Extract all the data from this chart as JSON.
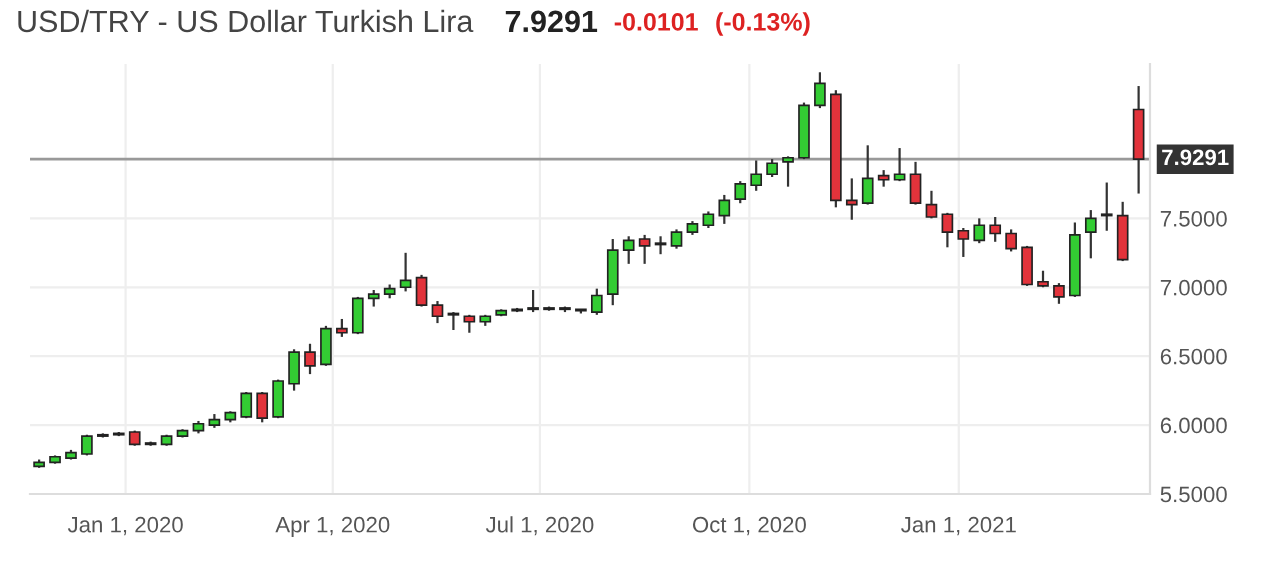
{
  "chart_data": {
    "type": "candlestick",
    "title": "USD/TRY - US Dollar Turkish Lira",
    "annotations": [
      "7.9291",
      "-0.0101",
      "(-0.13%)"
    ],
    "x": [
      "2019-11-24",
      "2019-12-01",
      "2019-12-08",
      "2019-12-15",
      "2019-12-22",
      "2019-12-29",
      "2020-01-05",
      "2020-01-12",
      "2020-01-19",
      "2020-01-26",
      "2020-02-02",
      "2020-02-09",
      "2020-02-16",
      "2020-02-23",
      "2020-03-01",
      "2020-03-08",
      "2020-03-15",
      "2020-03-22",
      "2020-03-29",
      "2020-04-05",
      "2020-04-12",
      "2020-04-19",
      "2020-04-26",
      "2020-05-03",
      "2020-05-10",
      "2020-05-17",
      "2020-05-24",
      "2020-05-31",
      "2020-06-07",
      "2020-06-14",
      "2020-06-21",
      "2020-06-28",
      "2020-07-05",
      "2020-07-12",
      "2020-07-19",
      "2020-07-26",
      "2020-08-02",
      "2020-08-09",
      "2020-08-16",
      "2020-08-23",
      "2020-08-30",
      "2020-09-06",
      "2020-09-13",
      "2020-09-20",
      "2020-09-27",
      "2020-10-04",
      "2020-10-11",
      "2020-10-18",
      "2020-10-25",
      "2020-11-01",
      "2020-11-08",
      "2020-11-15",
      "2020-11-22",
      "2020-11-29",
      "2020-12-06",
      "2020-12-13",
      "2020-12-20",
      "2020-12-27",
      "2021-01-03",
      "2021-01-10",
      "2021-01-17",
      "2021-01-24",
      "2021-01-31",
      "2021-02-07",
      "2021-02-14",
      "2021-02-21",
      "2021-02-28",
      "2021-03-07",
      "2021-03-14",
      "2021-03-21"
    ],
    "ohlc": [
      [
        5.7,
        5.75,
        5.69,
        5.73
      ],
      [
        5.73,
        5.78,
        5.72,
        5.77
      ],
      [
        5.76,
        5.82,
        5.75,
        5.8
      ],
      [
        5.79,
        5.93,
        5.78,
        5.92
      ],
      [
        5.92,
        5.94,
        5.91,
        5.93
      ],
      [
        5.93,
        5.95,
        5.92,
        5.94
      ],
      [
        5.95,
        5.96,
        5.85,
        5.86
      ],
      [
        5.86,
        5.88,
        5.85,
        5.87
      ],
      [
        5.86,
        5.93,
        5.85,
        5.92
      ],
      [
        5.92,
        5.97,
        5.91,
        5.96
      ],
      [
        5.96,
        6.03,
        5.94,
        6.01
      ],
      [
        6.0,
        6.08,
        5.98,
        6.04
      ],
      [
        6.04,
        6.1,
        6.02,
        6.09
      ],
      [
        6.06,
        6.24,
        6.05,
        6.23
      ],
      [
        6.23,
        6.24,
        6.02,
        6.05
      ],
      [
        6.06,
        6.33,
        6.05,
        6.32
      ],
      [
        6.3,
        6.55,
        6.25,
        6.53
      ],
      [
        6.53,
        6.59,
        6.37,
        6.43
      ],
      [
        6.44,
        6.72,
        6.43,
        6.7
      ],
      [
        6.7,
        6.77,
        6.64,
        6.67
      ],
      [
        6.67,
        6.93,
        6.66,
        6.92
      ],
      [
        6.92,
        6.98,
        6.86,
        6.95
      ],
      [
        6.95,
        7.02,
        6.92,
        6.99
      ],
      [
        7.0,
        7.25,
        6.97,
        7.05
      ],
      [
        7.07,
        7.09,
        6.86,
        6.87
      ],
      [
        6.87,
        6.9,
        6.74,
        6.79
      ],
      [
        6.81,
        6.82,
        6.69,
        6.8
      ],
      [
        6.79,
        6.8,
        6.67,
        6.75
      ],
      [
        6.75,
        6.8,
        6.72,
        6.79
      ],
      [
        6.8,
        6.84,
        6.79,
        6.83
      ],
      [
        6.83,
        6.85,
        6.82,
        6.84
      ],
      [
        6.84,
        6.98,
        6.82,
        6.85
      ],
      [
        6.84,
        6.86,
        6.83,
        6.85
      ],
      [
        6.85,
        6.86,
        6.82,
        6.84
      ],
      [
        6.84,
        6.84,
        6.81,
        6.83
      ],
      [
        6.82,
        6.99,
        6.8,
        6.94
      ],
      [
        6.95,
        7.35,
        6.87,
        7.27
      ],
      [
        7.27,
        7.37,
        7.17,
        7.34
      ],
      [
        7.35,
        7.38,
        7.17,
        7.3
      ],
      [
        7.31,
        7.37,
        7.24,
        7.32
      ],
      [
        7.3,
        7.42,
        7.28,
        7.4
      ],
      [
        7.4,
        7.48,
        7.38,
        7.46
      ],
      [
        7.45,
        7.55,
        7.43,
        7.53
      ],
      [
        7.52,
        7.67,
        7.46,
        7.63
      ],
      [
        7.64,
        7.77,
        7.61,
        7.75
      ],
      [
        7.74,
        7.92,
        7.7,
        7.82
      ],
      [
        7.82,
        7.93,
        7.8,
        7.9
      ],
      [
        7.91,
        7.95,
        7.73,
        7.94
      ],
      [
        7.94,
        8.34,
        7.93,
        8.32
      ],
      [
        8.32,
        8.56,
        8.3,
        8.48
      ],
      [
        8.4,
        8.43,
        7.58,
        7.63
      ],
      [
        7.63,
        7.79,
        7.49,
        7.6
      ],
      [
        7.61,
        8.03,
        7.6,
        7.79
      ],
      [
        7.81,
        7.85,
        7.73,
        7.78
      ],
      [
        7.78,
        8.01,
        7.77,
        7.82
      ],
      [
        7.82,
        7.91,
        7.6,
        7.61
      ],
      [
        7.6,
        7.7,
        7.5,
        7.51
      ],
      [
        7.53,
        7.54,
        7.29,
        7.4
      ],
      [
        7.41,
        7.43,
        7.22,
        7.35
      ],
      [
        7.34,
        7.5,
        7.32,
        7.45
      ],
      [
        7.45,
        7.51,
        7.33,
        7.39
      ],
      [
        7.39,
        7.42,
        7.26,
        7.28
      ],
      [
        7.29,
        7.3,
        7.01,
        7.02
      ],
      [
        7.04,
        7.12,
        7.0,
        7.01
      ],
      [
        7.01,
        7.03,
        6.88,
        6.93
      ],
      [
        6.94,
        7.47,
        6.93,
        7.38
      ],
      [
        7.4,
        7.56,
        7.21,
        7.5
      ],
      [
        7.52,
        7.76,
        7.41,
        7.53
      ],
      [
        7.52,
        7.62,
        7.19,
        7.2
      ],
      [
        8.29,
        8.46,
        7.68,
        7.93
      ]
    ],
    "colors": [
      "#33cc33",
      "#33cc33",
      "#33cc33",
      "#33cc33",
      "#33cc33",
      "#33cc33",
      "#e2333b",
      "#33cc33",
      "#33cc33",
      "#33cc33",
      "#33cc33",
      "#33cc33",
      "#33cc33",
      "#33cc33",
      "#e2333b",
      "#33cc33",
      "#33cc33",
      "#e2333b",
      "#33cc33",
      "#e2333b",
      "#33cc33",
      "#33cc33",
      "#33cc33",
      "#33cc33",
      "#e2333b",
      "#e2333b",
      "#e2333b",
      "#e2333b",
      "#33cc33",
      "#33cc33",
      "#33cc33",
      "#33cc33",
      "#33cc33",
      "#e2333b",
      "#e2333b",
      "#33cc33",
      "#33cc33",
      "#33cc33",
      "#e2333b",
      "#33cc33",
      "#33cc33",
      "#33cc33",
      "#33cc33",
      "#33cc33",
      "#33cc33",
      "#33cc33",
      "#33cc33",
      "#33cc33",
      "#33cc33",
      "#33cc33",
      "#e2333b",
      "#e2333b",
      "#33cc33",
      "#e2333b",
      "#33cc33",
      "#e2333b",
      "#e2333b",
      "#e2333b",
      "#e2333b",
      "#33cc33",
      "#e2333b",
      "#e2333b",
      "#e2333b",
      "#e2333b",
      "#e2333b",
      "#33cc33",
      "#33cc33",
      "#33cc33",
      "#e2333b",
      "#e2333b"
    ],
    "xlim": [
      "2019-11-20",
      "2021-03-26"
    ],
    "xticks": [
      {
        "value": "2020-01-01",
        "label": "Jan 1, 2020"
      },
      {
        "value": "2020-04-01",
        "label": "Apr 1, 2020"
      },
      {
        "value": "2020-07-01",
        "label": "Jul 1, 2020"
      },
      {
        "value": "2020-10-01",
        "label": "Oct 1, 2020"
      },
      {
        "value": "2021-01-01",
        "label": "Jan 1, 2021"
      }
    ],
    "ylim": [
      5.5,
      8.62
    ],
    "yticks": [
      {
        "value": 5.5,
        "label": "5.5000"
      },
      {
        "value": 6.0,
        "label": "6.0000"
      },
      {
        "value": 6.5,
        "label": "6.5000"
      },
      {
        "value": 7.0,
        "label": "7.0000"
      },
      {
        "value": 7.5,
        "label": "7.5000"
      }
    ],
    "ref_lines": [
      {
        "axis": "y",
        "value": 7.9291,
        "label": "7.9291",
        "color": "#999999"
      }
    ],
    "grid": true
  }
}
